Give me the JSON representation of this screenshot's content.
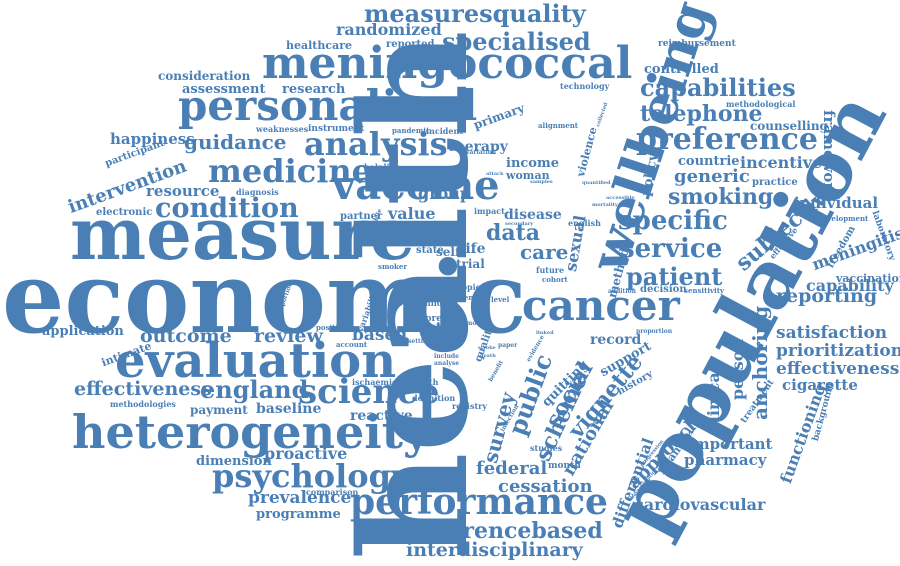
{
  "colors": {
    "word": "#4a7fb5",
    "background": "#ffffff"
  },
  "words": {
    "health": "health",
    "economic": "economic",
    "measure": "measure",
    "population": "population",
    "evaluation": "evaluation",
    "heterogeneity": "heterogeneity",
    "wellbeing": "wellbeing",
    "meningococcal": "meningococcal",
    "personalised": "personalised",
    "cancer": "cancer",
    "vaccine": "vaccine",
    "medicine": "medicine",
    "performance": "performance",
    "science": "science",
    "psychology": "psychology",
    "analysis": "analysis",
    "condition": "condition",
    "preference": "preference",
    "capabilities": "capabilities",
    "measuresquality": "measuresquality",
    "specialised": "specialised",
    "telephone": "telephone",
    "specific": "specific",
    "service": "service",
    "smoking": "smoking",
    "patient": "patient",
    "generic": "generic",
    "preferencebased": "preferencebased",
    "interdisciplinary": "interdisciplinary",
    "england": "england",
    "effectiveness_left": "effectiveness",
    "effectiveness_right": "effectiveness",
    "outcome": "outcome",
    "review": "review",
    "guidance": "guidance",
    "intervention": "intervention",
    "resource": "resource",
    "happiness": "happiness",
    "assessment": "assessment",
    "research": "research",
    "consideration": "consideration",
    "randomized": "randomized",
    "healthcare": "healthcare",
    "reported": "reported",
    "application": "application",
    "intimate": "intimate",
    "payment": "payment",
    "baseline": "baseline",
    "reactive": "reactive",
    "dimension": "dimension",
    "proactive": "proactive",
    "prevalence": "prevalence",
    "comparison": "comparison",
    "programme": "programme",
    "survey": "survey",
    "public": "public",
    "social": "social",
    "scheme": "scheme",
    "vignette": "vignette",
    "national": "national",
    "approach": "approach",
    "federal": "federal",
    "cessation": "cessation",
    "differential": "differential",
    "cardiovascular": "cardiovascular",
    "pharmacy": "pharmacy",
    "important": "important",
    "clinical": "clinical",
    "anchoring": "anchoring",
    "functioning": "functioning",
    "cigarette": "cigarette",
    "prioritization": "prioritization",
    "satisfaction": "satisfaction",
    "reporting": "reporting",
    "capability": "capability",
    "meningitis": "meningitis",
    "vaccination": "vaccination",
    "individual": "individual",
    "subjective": "subjective",
    "framework": "framework",
    "incentive": "incentive",
    "counselling": "counselling",
    "controlled": "controlled",
    "reimbursement": "reimbursement",
    "primary": "primary",
    "therapy": "therapy",
    "income": "income",
    "woman": "woman",
    "disease": "disease",
    "group": "group",
    "value": "value",
    "data": "data",
    "care": "care",
    "life": "life",
    "trial": "trial",
    "based": "based",
    "cost": "cost",
    "record": "record",
    "support": "support",
    "person": "person",
    "sexual": "sexual",
    "policy": "policy",
    "method": "method",
    "countrie": "countrie",
    "electronic": "electronic",
    "participant": "participant",
    "weaknesses": "weaknesses",
    "instrument": "instrument",
    "pandemic": "pandemic",
    "incident": "incident",
    "technology": "technology",
    "alignment": "alignment",
    "diagnosis": "diagnosis",
    "helpline": "helpline",
    "partner": "partner",
    "methodologies": "methodologies",
    "ischaemic": "ischaemic",
    "strength": "strength",
    "definition": "definition",
    "registry": "registry",
    "quitting": "quitting",
    "studies": "studies",
    "history": "history",
    "financial": "financial",
    "practice": "practice",
    "treatment": "treatment",
    "background": "background",
    "development": "development",
    "freedom": "freedom",
    "laboratory": "laboratory",
    "violence": "violence",
    "methodological": "methodological",
    "month": "month",
    "future": "future",
    "cohort": "cohort",
    "decision": "decision",
    "sensitivity": "sensitivity",
    "addition": "addition",
    "proportion": "proportion",
    "position": "position",
    "account": "account",
    "setting": "setting",
    "include": "include",
    "analyse": "analyse",
    "self": "self",
    "state": "state",
    "rapid": "rapid",
    "more": "more",
    "child": "child",
    "topic": "topic",
    "level": "level",
    "smoker": "smoker",
    "number": "number",
    "impact": "impact",
    "english": "english",
    "quality": "quality",
    "effect": "effect",
    "middle": "middle",
    "equip": "equip",
    "quantified": "quantified",
    "accessible": "accessible",
    "mortality": "mortality",
    "samples": "samples",
    "secondary": "secondary",
    "attack": "attack",
    "variation": "variation",
    "portion": "portion",
    "variability": "variability",
    "paper": "paper",
    "infection": "infection",
    "evidence": "evidence",
    "stroke": "stroke",
    "death": "death",
    "benefit": "benefit",
    "qalys": "qalys",
    "linked": "linked",
    "item": "item",
    "most": "most",
    "progression": "progression",
    "characteristic": "characteristic",
    "effective": "effective",
    "collected": "collected"
  }
}
